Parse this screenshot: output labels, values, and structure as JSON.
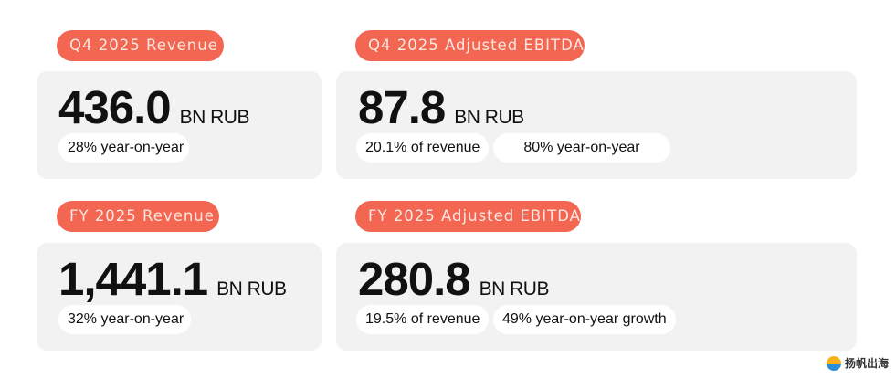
{
  "cards": [
    {
      "label": "Q4 2025 Revenue",
      "value": "436.0",
      "unit": "BN RUB",
      "notes": [
        "28% year-on-year"
      ]
    },
    {
      "label": "Q4 2025 Adjusted EBITDA",
      "value": "87.8",
      "unit": "BN RUB",
      "notes": [
        "20.1% of revenue",
        "80% year-on-year"
      ]
    },
    {
      "label": "FY 2025 Revenue",
      "value": "1,441.1",
      "unit": "BN RUB",
      "notes": [
        "32% year-on-year"
      ]
    },
    {
      "label": "FY 2025 Adjusted EBITDA",
      "value": "280.8",
      "unit": "BN RUB",
      "notes": [
        "19.5% of revenue",
        "49% year-on-year growth"
      ]
    }
  ],
  "watermark": "扬帆出海",
  "colors": {
    "accent": "#f26652",
    "card": "#f2f2f2"
  }
}
